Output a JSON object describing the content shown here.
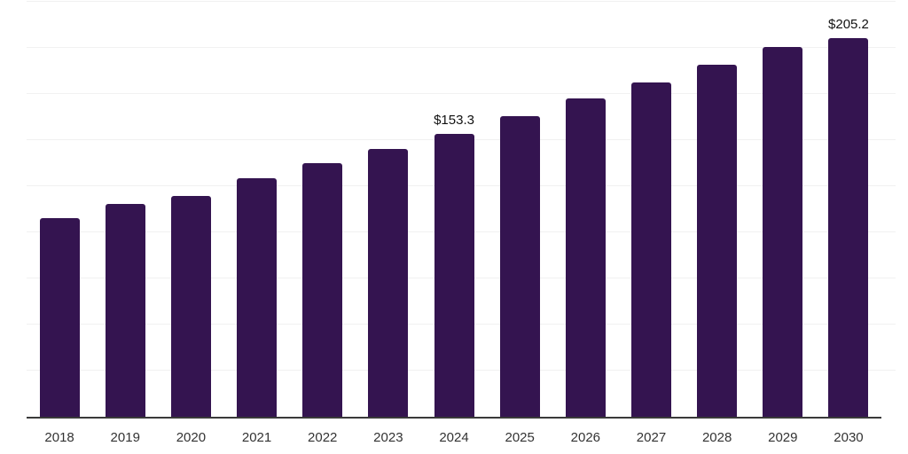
{
  "chart_data": {
    "type": "bar",
    "title": "",
    "xlabel": "",
    "ylabel": "",
    "categories": [
      "2018",
      "2019",
      "2020",
      "2021",
      "2022",
      "2023",
      "2024",
      "2025",
      "2026",
      "2027",
      "2028",
      "2029",
      "2030"
    ],
    "values": [
      107.9,
      115.5,
      119.7,
      129.6,
      137.4,
      145.1,
      153.3,
      162.9,
      172.5,
      181.2,
      190.8,
      200.4,
      205.2
    ],
    "data_labels": {
      "2024": "$153.3",
      "2030": "$205.2"
    },
    "value_unit_prefix": "$",
    "ylim": [
      0,
      226
    ],
    "gridline_step": 25,
    "grid": "horizontal",
    "legend": "none",
    "y_axis_tick_labels": "none"
  },
  "colors": {
    "bar": "#341450",
    "gridline": "#f1f1f1",
    "axis_line": "#3a3a3a",
    "tick_label": "#333333",
    "data_label": "#111111",
    "background": "#ffffff"
  }
}
